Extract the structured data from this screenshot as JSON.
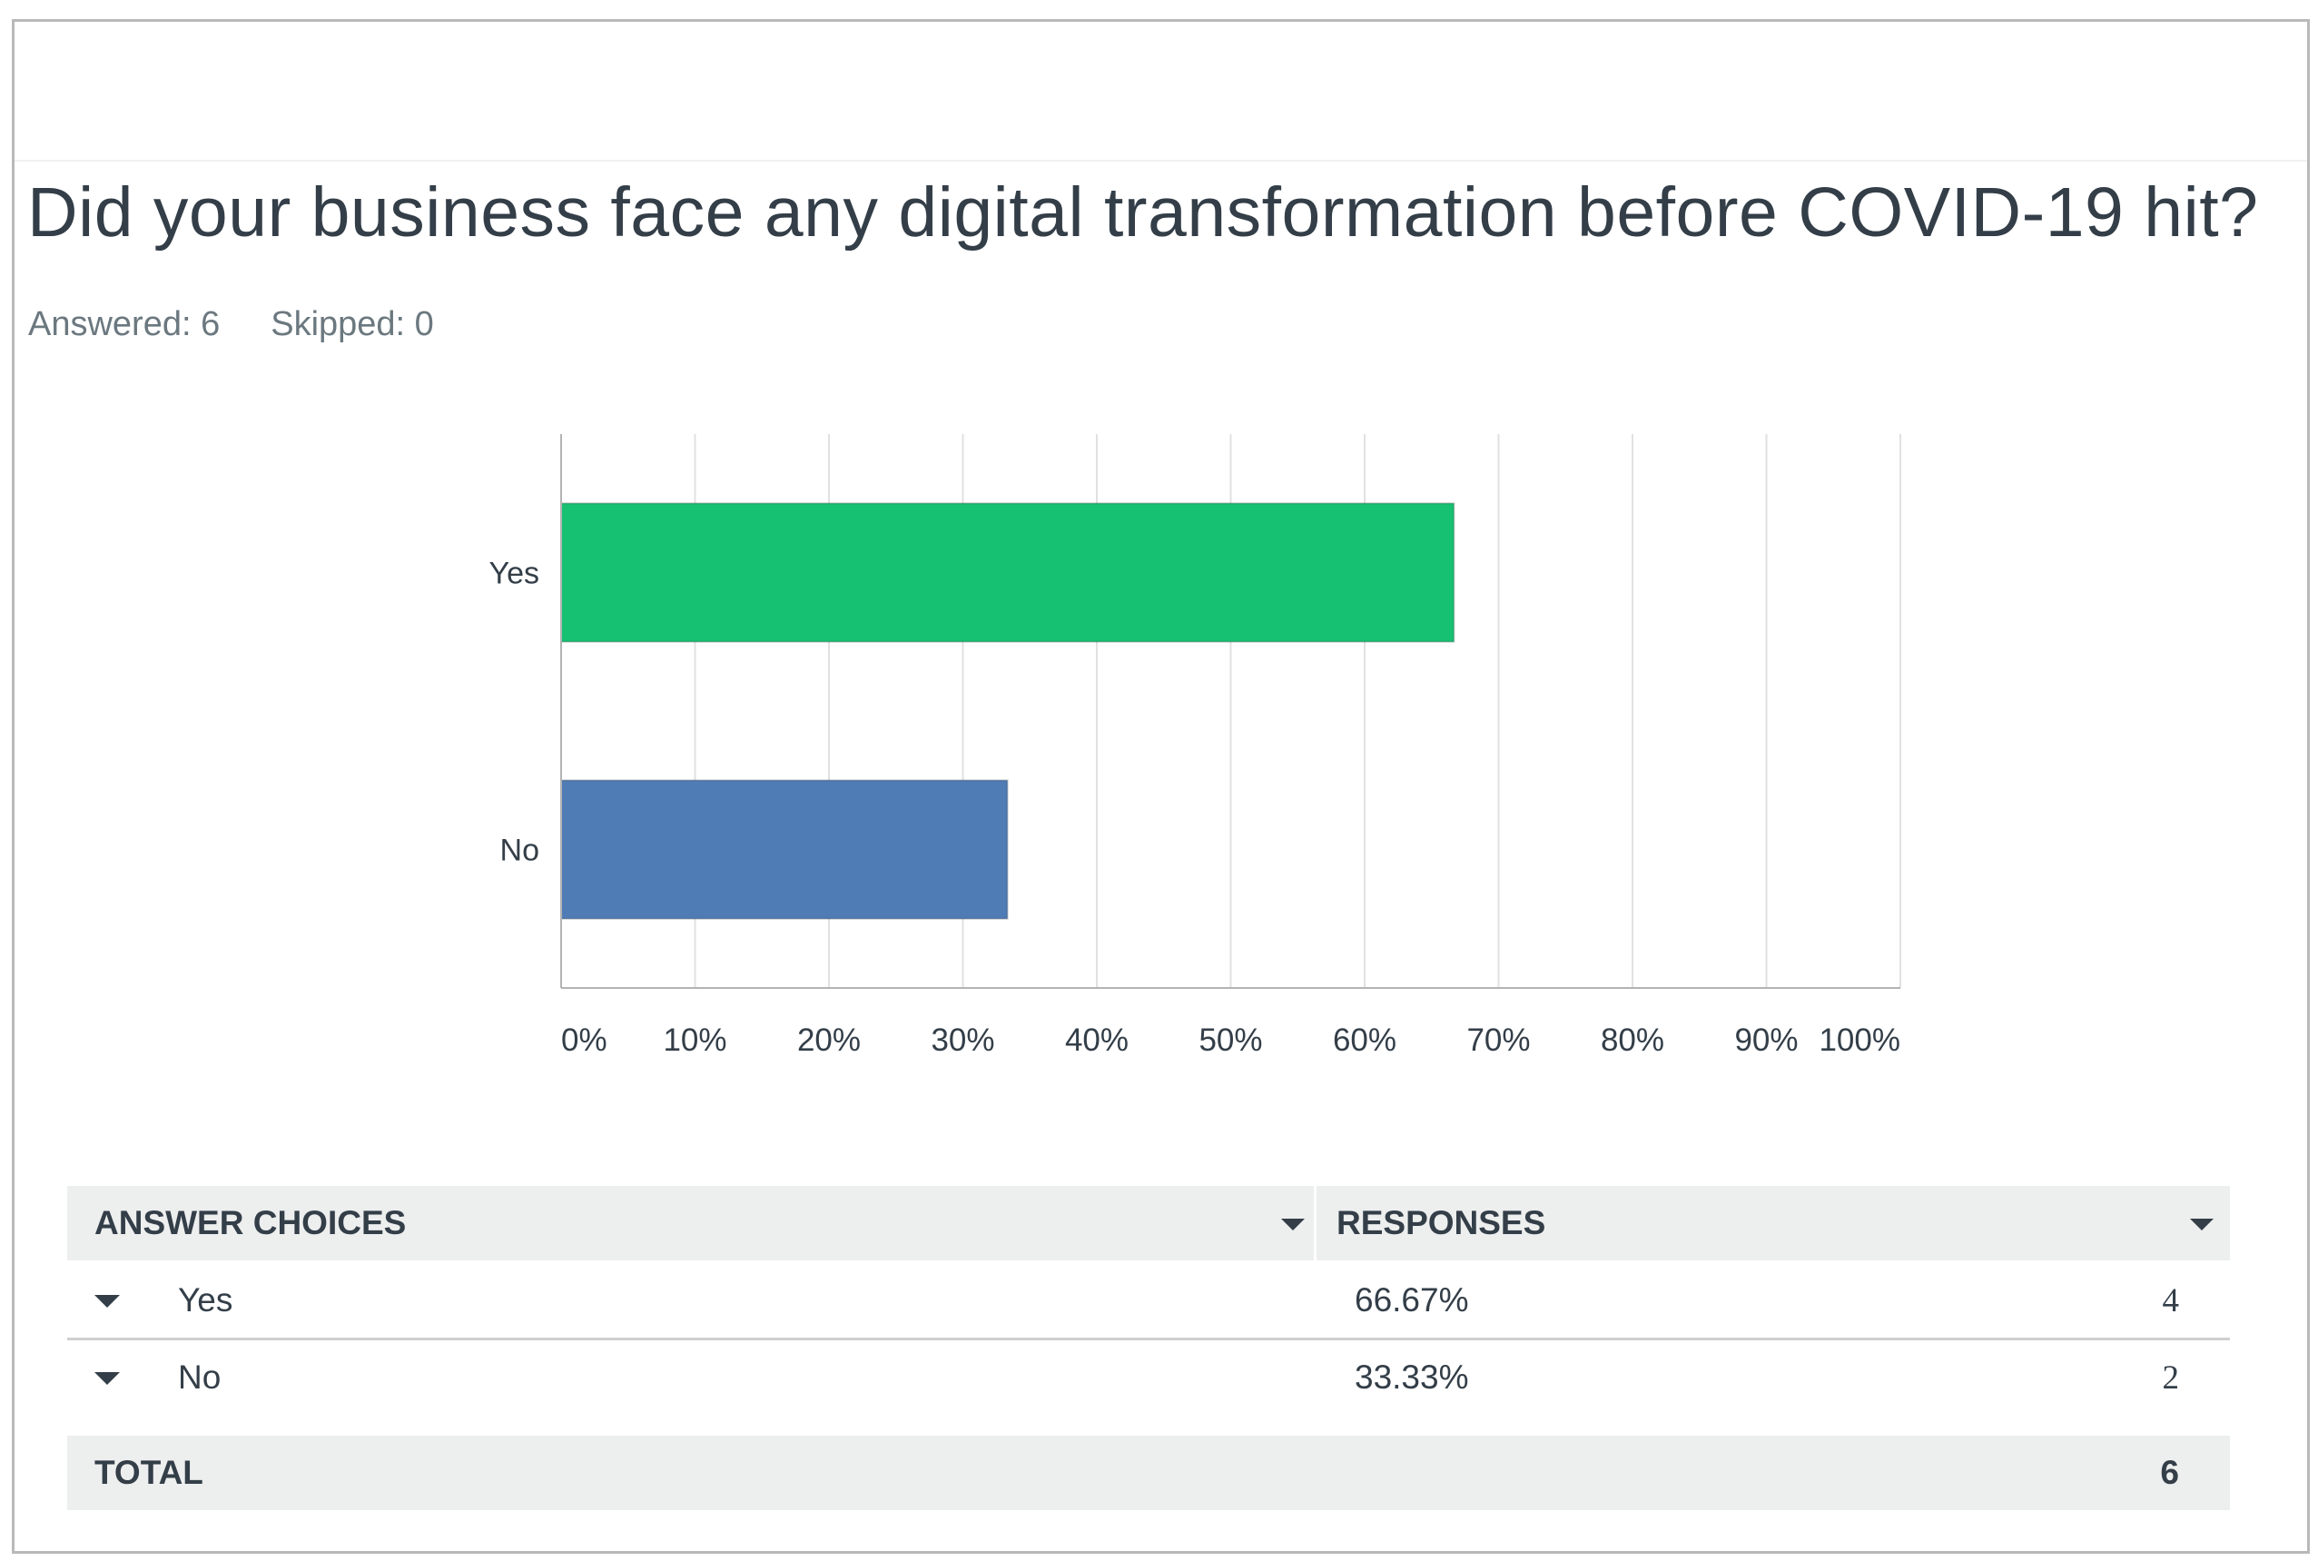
{
  "question": {
    "title": "Did your business face any digital transformation before COVID-19 hit?",
    "answered_text": "Answered: 6",
    "skipped_text": "Skipped: 0"
  },
  "chart_data": {
    "type": "bar",
    "orientation": "horizontal",
    "categories": [
      "Yes",
      "No"
    ],
    "values": [
      66.67,
      33.33
    ],
    "colors": [
      "#16c172",
      "#507cb6"
    ],
    "xlim": [
      0,
      100
    ],
    "xticks": [
      "0%",
      "10%",
      "20%",
      "30%",
      "40%",
      "50%",
      "60%",
      "70%",
      "80%",
      "90%",
      "100%"
    ],
    "grid": true,
    "title": "",
    "xlabel": "",
    "ylabel": ""
  },
  "table": {
    "header": {
      "answer_choices": "ANSWER CHOICES",
      "responses": "RESPONSES"
    },
    "rows": [
      {
        "label": "Yes",
        "percent": "66.67%",
        "count": "4"
      },
      {
        "label": "No",
        "percent": "33.33%",
        "count": "2"
      }
    ],
    "total": {
      "label": "TOTAL",
      "count": "6"
    }
  },
  "icons": {
    "sort": "caret-down-icon",
    "expand": "caret-down-icon"
  },
  "colors": {
    "grid": "#e1e1e1",
    "axis": "#b3b3b3",
    "header_bg": "#edeeee",
    "text": "#333e48",
    "muted": "#6b787f"
  }
}
